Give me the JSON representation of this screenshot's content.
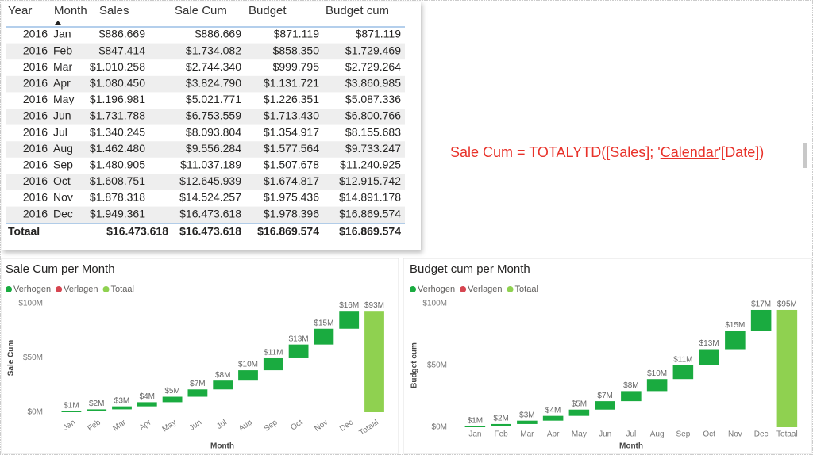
{
  "table": {
    "headers": [
      "Year",
      "Month",
      "Sales",
      "Sale Cum",
      "Budget",
      "Budget cum"
    ],
    "rows": [
      [
        "2016",
        "Jan",
        "$886.669",
        "$886.669",
        "$871.119",
        "$871.119"
      ],
      [
        "2016",
        "Feb",
        "$847.414",
        "$1.734.082",
        "$858.350",
        "$1.729.469"
      ],
      [
        "2016",
        "Mar",
        "$1.010.258",
        "$2.744.340",
        "$999.795",
        "$2.729.264"
      ],
      [
        "2016",
        "Apr",
        "$1.080.450",
        "$3.824.790",
        "$1.131.721",
        "$3.860.985"
      ],
      [
        "2016",
        "May",
        "$1.196.981",
        "$5.021.771",
        "$1.226.351",
        "$5.087.336"
      ],
      [
        "2016",
        "Jun",
        "$1.731.788",
        "$6.753.559",
        "$1.713.430",
        "$6.800.766"
      ],
      [
        "2016",
        "Jul",
        "$1.340.245",
        "$8.093.804",
        "$1.354.917",
        "$8.155.683"
      ],
      [
        "2016",
        "Aug",
        "$1.462.480",
        "$9.556.284",
        "$1.577.564",
        "$9.733.247"
      ],
      [
        "2016",
        "Sep",
        "$1.480.905",
        "$11.037.189",
        "$1.507.678",
        "$11.240.925"
      ],
      [
        "2016",
        "Oct",
        "$1.608.751",
        "$12.645.939",
        "$1.674.817",
        "$12.915.742"
      ],
      [
        "2016",
        "Nov",
        "$1.878.318",
        "$14.524.257",
        "$1.975.436",
        "$14.891.178"
      ],
      [
        "2016",
        "Dec",
        "$1.949.361",
        "$16.473.618",
        "$1.978.396",
        "$16.869.574"
      ]
    ],
    "total": [
      "Totaal",
      "$16.473.618",
      "$16.473.618",
      "$16.869.574",
      "$16.869.574"
    ]
  },
  "formula": [
    "Sale Cum = TOTALYTD([Sales]; '",
    "Calendar",
    "'[Date])"
  ],
  "chart_data": [
    {
      "type": "waterfall",
      "title": "Sale Cum per Month",
      "legend": [
        {
          "name": "Verhogen",
          "color": "#1aab40"
        },
        {
          "name": "Verlagen",
          "color": "#d64550"
        },
        {
          "name": "Totaal",
          "color": "#8fd150"
        }
      ],
      "categories": [
        "Jan",
        "Feb",
        "Mar",
        "Apr",
        "May",
        "Jun",
        "Jul",
        "Aug",
        "Sep",
        "Oct",
        "Nov",
        "Dec",
        "Totaal"
      ],
      "values": [
        886669,
        1734082,
        2744340,
        3824790,
        5021771,
        6753559,
        8093804,
        9556284,
        11037189,
        12645939,
        14524257,
        16473618,
        93296302
      ],
      "value_labels": [
        "$1M",
        "$2M",
        "$3M",
        "$4M",
        "$5M",
        "$7M",
        "$8M",
        "$10M",
        "$11M",
        "$13M",
        "$15M",
        "$16M",
        "$93M"
      ],
      "x_label": "Month",
      "y_label": "Sale Cum",
      "ylim": [
        0,
        100000000
      ],
      "yticks": [
        {
          "value": 0,
          "label": "$0M"
        },
        {
          "value": 50000000,
          "label": "$50M"
        },
        {
          "value": 100000000,
          "label": "$100M"
        }
      ]
    },
    {
      "type": "waterfall",
      "title": "Budget cum per Month",
      "legend": [
        {
          "name": "Verhogen",
          "color": "#1aab40"
        },
        {
          "name": "Verlagen",
          "color": "#d64550"
        },
        {
          "name": "Totaal",
          "color": "#8fd150"
        }
      ],
      "categories": [
        "Jan",
        "Feb",
        "Mar",
        "Apr",
        "May",
        "Jun",
        "Jul",
        "Aug",
        "Sep",
        "Oct",
        "Nov",
        "Dec",
        "Totaal"
      ],
      "values": [
        871119,
        1729469,
        2729264,
        3860985,
        5087336,
        6800766,
        8155683,
        9733247,
        11240925,
        12915742,
        14891178,
        16869574,
        94885288
      ],
      "value_labels": [
        "$1M",
        "$2M",
        "$3M",
        "$4M",
        "$5M",
        "$7M",
        "$8M",
        "$10M",
        "$11M",
        "$13M",
        "$15M",
        "$17M",
        "$95M"
      ],
      "x_label": "Month",
      "y_label": "Budget cum",
      "ylim": [
        0,
        100000000
      ],
      "yticks": [
        {
          "value": 0,
          "label": "$0M"
        },
        {
          "value": 50000000,
          "label": "$50M"
        },
        {
          "value": 100000000,
          "label": "$100M"
        }
      ]
    }
  ]
}
